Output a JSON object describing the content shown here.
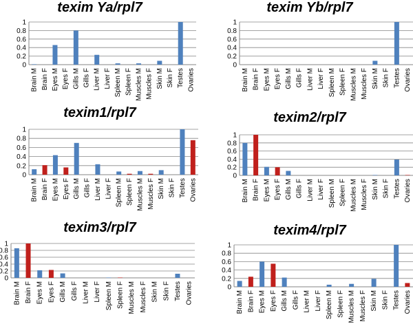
{
  "colors": {
    "male": "#4f81bd",
    "female": "#c0201c",
    "axis": "#868686",
    "grid": "#868686"
  },
  "chart_data": [
    {
      "type": "bar",
      "title": "texim Ya/rpl7",
      "categories": [
        "Brain M",
        "Brain F",
        "Eyes M",
        "Eyes F",
        "Gills M",
        "Gills F",
        "Liver M",
        "Liver F",
        "Spleen M",
        "Spleen F",
        "Muscles M",
        "Muscles F",
        "Skin M",
        "Skin F",
        "Testes",
        "Ovaries"
      ],
      "values": [
        0.01,
        0,
        0.46,
        0,
        0.8,
        0,
        0.23,
        0,
        0.03,
        0,
        0.03,
        0,
        0.09,
        0,
        1.0,
        0
      ],
      "ylim": [
        0,
        1
      ],
      "yticks": [
        "0",
        "0.2",
        "0.4",
        "0.6",
        "0.8",
        "1"
      ],
      "grid": true
    },
    {
      "type": "bar",
      "title": "texim Yb/rpl7",
      "categories": [
        "Brain M",
        "Brain F",
        "Eyes M",
        "Eyes F",
        "Gills M",
        "Gills F",
        "Liver M",
        "Liver F",
        "Spleen M",
        "Spleen F",
        "Muscles M",
        "Muscles F",
        "Skin M",
        "Skin F",
        "Testes",
        "Ovaries"
      ],
      "values": [
        0,
        0,
        0,
        0,
        0,
        0,
        0,
        0,
        0,
        0,
        0,
        0,
        0.09,
        0,
        1.0,
        0
      ],
      "ylim": [
        0,
        1
      ],
      "yticks": [
        "0",
        "0.2",
        "0.4",
        "0.6",
        "0.8",
        "1"
      ],
      "grid": true
    },
    {
      "type": "bar",
      "title": "texim1/rpl7",
      "categories": [
        "Brain M",
        "Brain F",
        "Eyes M",
        "Eyes F",
        "Gills M",
        "Gills F",
        "Liver M",
        "Liver F",
        "Spleen M",
        "Spleen F",
        "Muscles M",
        "Muscles F",
        "Skin M",
        "Skin F",
        "Testes",
        "Ovaries"
      ],
      "values": [
        0.12,
        0.21,
        0.43,
        0.16,
        0.7,
        0,
        0.23,
        0,
        0.07,
        0.02,
        0.08,
        0.02,
        0.1,
        0,
        1.0,
        0.76
      ],
      "ylim": [
        0,
        1
      ],
      "yticks": [
        "0",
        "0.2",
        "0.4",
        "0.6",
        "0.8",
        "1"
      ],
      "grid": true
    },
    {
      "type": "bar",
      "title": "texim2/rpl7",
      "categories": [
        "Brain M",
        "Brain F",
        "Eyes M",
        "Eyes F",
        "Gills M",
        "Gills F",
        "Liver M",
        "Liver F",
        "Spleen M",
        "Spleen F",
        "Muscles M",
        "Muscles F",
        "Skin M",
        "Skin F",
        "Testes",
        "Ovaries"
      ],
      "values": [
        0.8,
        1.0,
        0.21,
        0.2,
        0.11,
        0,
        0,
        0,
        0,
        0,
        0,
        0,
        0.01,
        0,
        0.39,
        0.01
      ],
      "ylim": [
        0,
        1
      ],
      "yticks": [
        "0",
        "0.2",
        "0.4",
        "0.6",
        "0.8",
        "1"
      ],
      "grid": true
    },
    {
      "type": "bar",
      "title": "texim3/rpl7",
      "categories": [
        "Brain M",
        "Brain F",
        "Eyes M",
        "Eyes F",
        "Gills M",
        "Gills F",
        "Liver M",
        "Liver F",
        "Spleen M",
        "Spleen F",
        "Muscles M",
        "Muscles F",
        "Skin M",
        "Skin F",
        "Testes",
        "Ovaries"
      ],
      "values": [
        0.86,
        1.0,
        0.22,
        0.23,
        0.13,
        0,
        0,
        0,
        0.01,
        0.01,
        0,
        0,
        0,
        0,
        0.12,
        0
      ],
      "ylim": [
        0,
        1
      ],
      "yticks": [
        "0",
        "0.2",
        "0.4",
        "0.6",
        "0.8",
        "1"
      ],
      "grid": true
    },
    {
      "type": "bar",
      "title": "texim4/rpl7",
      "categories": [
        "Brain M",
        "Brain F",
        "Eyes M",
        "Eyes F",
        "Gills M",
        "Gills F",
        "Liver M",
        "Liver F",
        "Spleen M",
        "Spleen F",
        "Muscles M",
        "Muscles F",
        "Skin M",
        "Skin F",
        "Testes",
        "Ovaries"
      ],
      "values": [
        0.14,
        0.24,
        0.6,
        0.55,
        0.22,
        0,
        0,
        0,
        0.05,
        0,
        0.07,
        0,
        0.19,
        0,
        1.0,
        0.09
      ],
      "ylim": [
        0,
        1
      ],
      "yticks": [
        "0",
        "0.2",
        "0.4",
        "0.6",
        "0.8",
        "1"
      ],
      "grid": true
    }
  ]
}
